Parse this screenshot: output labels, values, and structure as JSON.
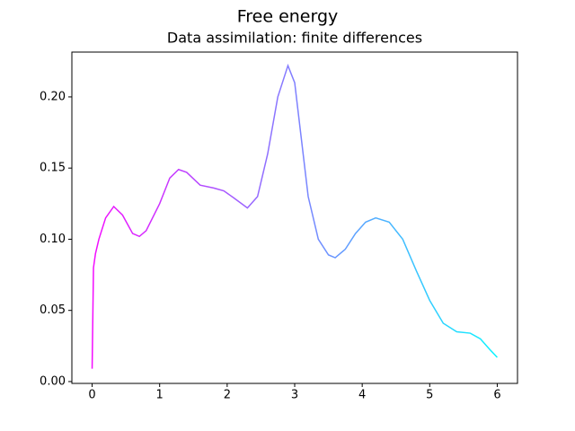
{
  "chart_data": {
    "type": "line",
    "suptitle": "Free energy",
    "title": "Data assimilation: finite differences",
    "x": [
      0,
      0.02,
      0.05,
      0.1,
      0.2,
      0.32,
      0.45,
      0.6,
      0.7,
      0.8,
      1.0,
      1.15,
      1.28,
      1.4,
      1.6,
      1.8,
      1.95,
      2.1,
      2.3,
      2.45,
      2.6,
      2.75,
      2.9,
      3.0,
      3.1,
      3.2,
      3.35,
      3.5,
      3.6,
      3.75,
      3.9,
      4.05,
      4.2,
      4.4,
      4.6,
      4.8,
      5.0,
      5.2,
      5.4,
      5.6,
      5.75,
      5.9,
      6.0
    ],
    "series": [
      {
        "colors": [
          "#ff00ff",
          "#00ffff"
        ],
        "values": [
          0.009,
          0.08,
          0.09,
          0.1,
          0.115,
          0.123,
          0.117,
          0.104,
          0.102,
          0.106,
          0.125,
          0.143,
          0.149,
          0.147,
          0.138,
          0.136,
          0.134,
          0.129,
          0.122,
          0.13,
          0.16,
          0.2,
          0.222,
          0.21,
          0.17,
          0.13,
          0.1,
          0.089,
          0.087,
          0.093,
          0.104,
          0.112,
          0.115,
          0.112,
          0.1,
          0.078,
          0.057,
          0.041,
          0.035,
          0.034,
          0.03,
          0.022,
          0.017
        ]
      }
    ],
    "xlim": [
      -0.3,
      6.3
    ],
    "ylim": [
      -0.0013,
      0.2315
    ],
    "xticks": [
      0,
      1,
      2,
      3,
      4,
      5,
      6
    ],
    "yticks": [
      {
        "value": 0,
        "label": "0.00"
      },
      {
        "value": 0.05,
        "label": "0.05"
      },
      {
        "value": 0.1,
        "label": "0.10"
      },
      {
        "value": 0.15,
        "label": "0.15"
      },
      {
        "value": 0.2,
        "label": "0.20"
      }
    ],
    "grid": false
  }
}
